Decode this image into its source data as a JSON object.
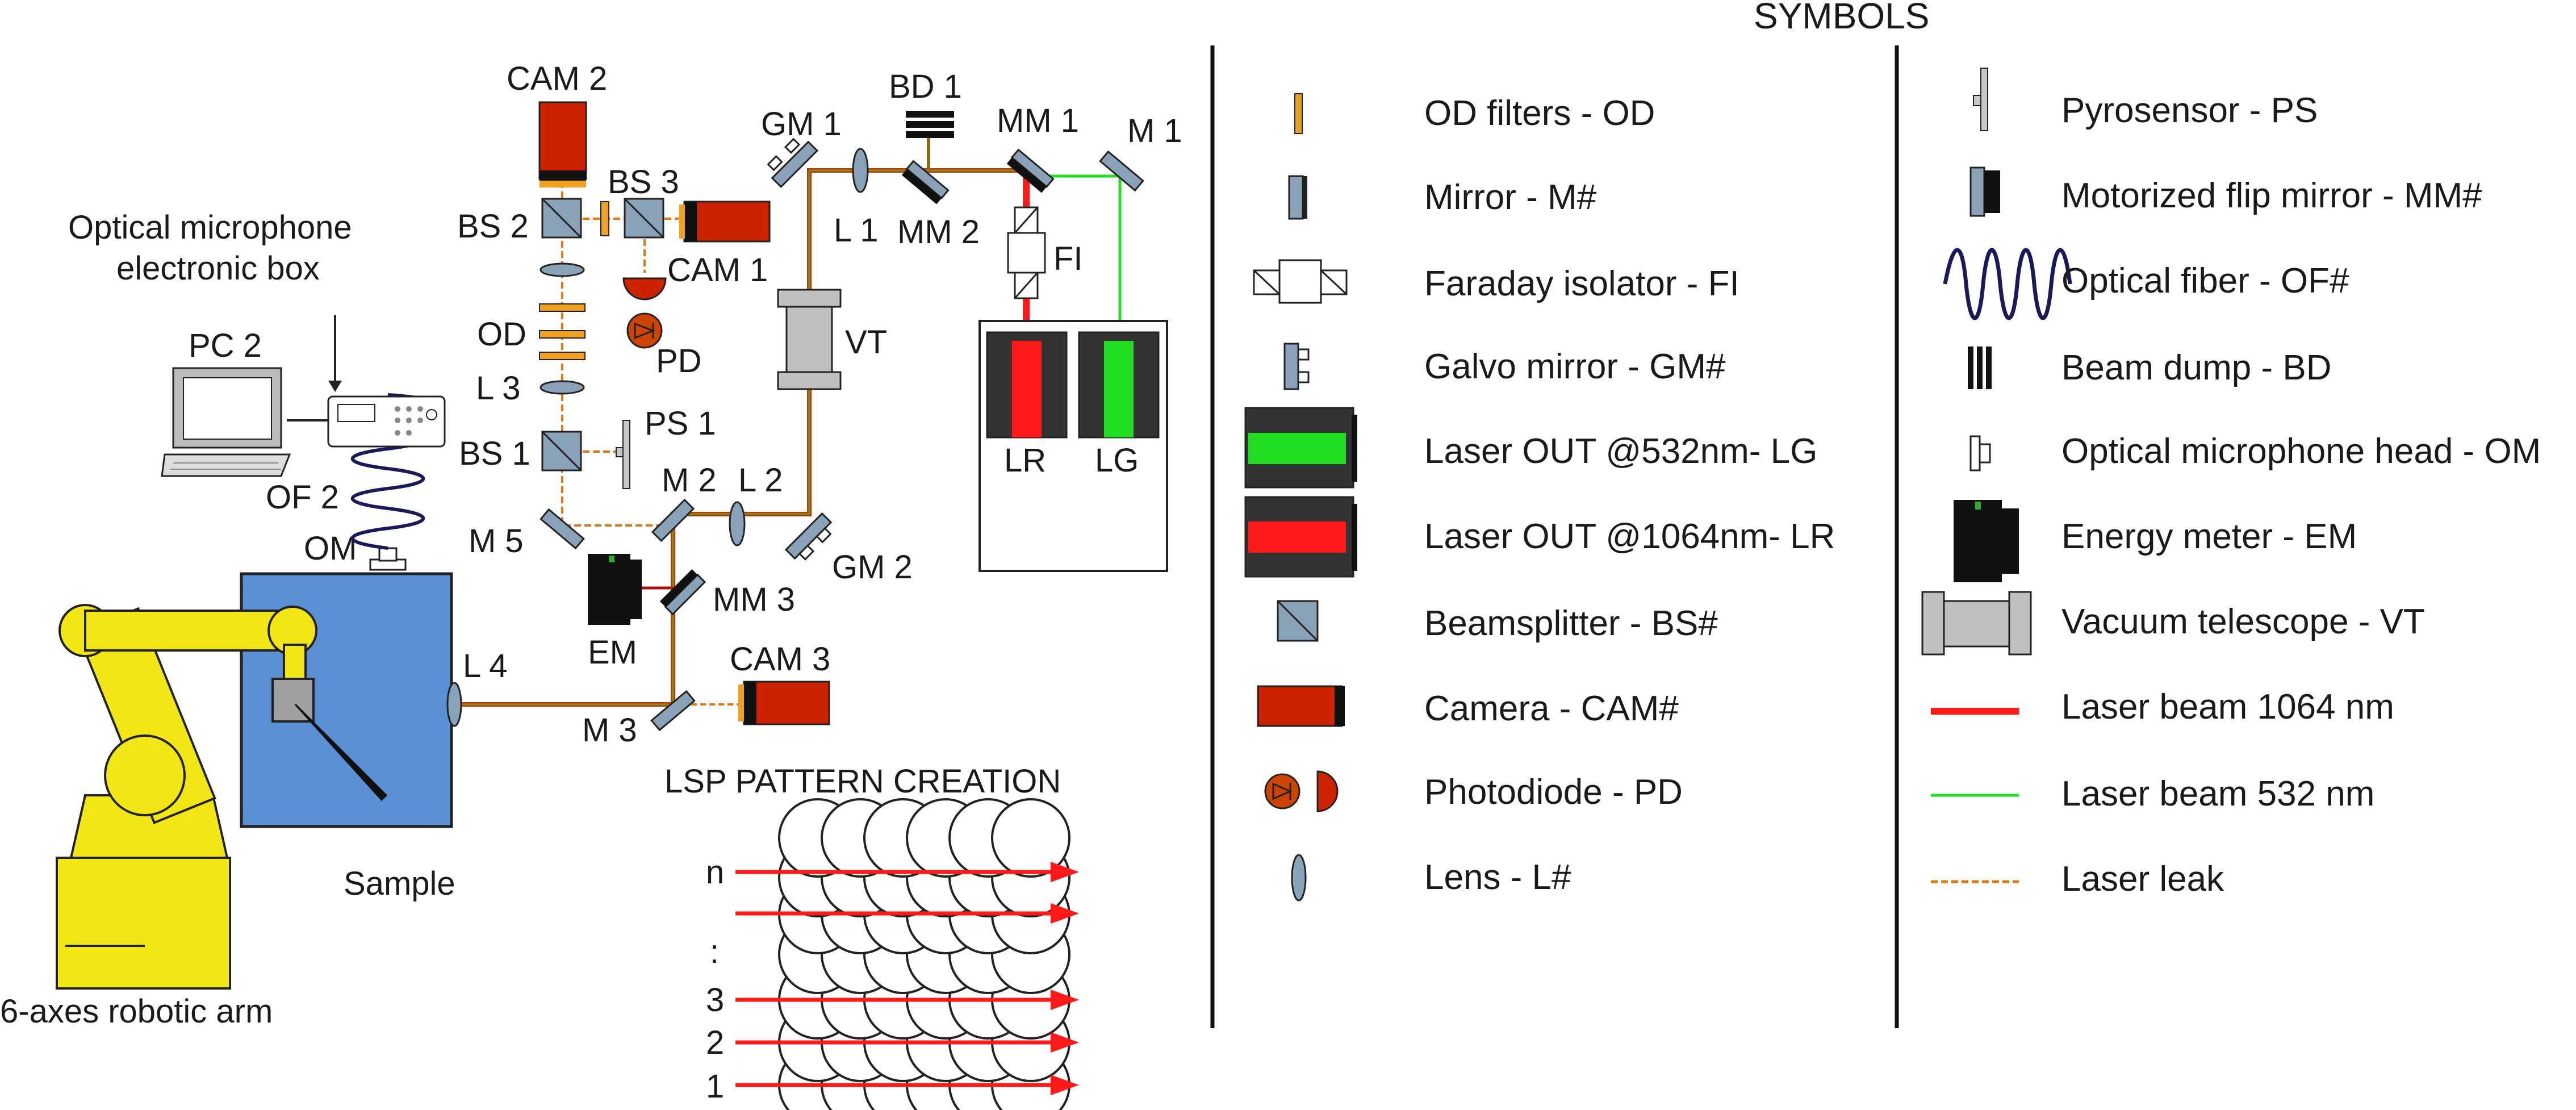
{
  "header": {
    "symbols_title": "SYMBOLS"
  },
  "labels": {
    "cam2": "CAM 2",
    "cam1": "CAM 1",
    "cam3": "CAM 3",
    "bs1": "BS 1",
    "bs2": "BS 2",
    "bs3": "BS 3",
    "od": "OD",
    "l1": "L 1",
    "l2": "L 2",
    "l3": "L 3",
    "l4": "L 4",
    "pd": "PD",
    "ps1": "PS 1",
    "m1": "M 1",
    "m2": "M 2",
    "m3": "M 3",
    "m5": "M 5",
    "mm1": "MM 1",
    "mm2": "MM 2",
    "mm3": "MM 3",
    "gm1": "GM 1",
    "gm2": "GM 2",
    "bd1": "BD 1",
    "fi": "FI",
    "vt": "VT",
    "lr": "LR",
    "lg": "LG",
    "em": "EM",
    "om": "OM",
    "of2": "OF 2",
    "pc2": "PC 2",
    "mic_box_1": "Optical microphone",
    "mic_box_2": "electronic box",
    "sample": "Sample",
    "robot": "6-axes robotic arm",
    "lsp_title": "LSP PATTERN CREATION",
    "row_n": "n",
    "row_dots": ":",
    "row_3": "3",
    "row_2": "2",
    "row_1": "1"
  },
  "legend_left": [
    {
      "icon": "od-filter-icon",
      "label": "OD filters - OD"
    },
    {
      "icon": "mirror-icon",
      "label": "Mirror - M#"
    },
    {
      "icon": "faraday-isolator-icon",
      "label": "Faraday isolator - FI"
    },
    {
      "icon": "galvo-mirror-icon",
      "label": "Galvo mirror - GM#"
    },
    {
      "icon": "laser-green-icon",
      "label": "Laser OUT @532nm- LG"
    },
    {
      "icon": "laser-red-icon",
      "label": "Laser OUT @1064nm- LR"
    },
    {
      "icon": "beamsplitter-icon",
      "label": "Beamsplitter - BS#"
    },
    {
      "icon": "camera-icon",
      "label": "Camera - CAM#"
    },
    {
      "icon": "photodiode-icon",
      "label": "Photodiode - PD"
    },
    {
      "icon": "lens-icon",
      "label": "Lens - L#"
    }
  ],
  "legend_right": [
    {
      "icon": "pyrosensor-icon",
      "label": "Pyrosensor - PS"
    },
    {
      "icon": "flip-mirror-icon",
      "label": "Motorized flip mirror - MM#"
    },
    {
      "icon": "optical-fiber-icon",
      "label": "Optical fiber - OF#"
    },
    {
      "icon": "beam-dump-icon",
      "label": "Beam dump - BD"
    },
    {
      "icon": "microphone-head-icon",
      "label": "Optical microphone head - OM"
    },
    {
      "icon": "energy-meter-icon",
      "label": "Energy meter - EM"
    },
    {
      "icon": "vacuum-telescope-icon",
      "label": "Vacuum telescope - VT"
    },
    {
      "icon": "beam-1064-icon",
      "label": "Laser beam 1064 nm"
    },
    {
      "icon": "beam-532-icon",
      "label": "Laser beam 532 nm"
    },
    {
      "icon": "laser-leak-icon",
      "label": "Laser leak"
    }
  ],
  "colors": {
    "laser_red": "#ff1a1a",
    "laser_green": "#22dd22",
    "leak": "#e07a10",
    "camera_red": "#cc2200",
    "chamber_blue": "#5b8fd4",
    "robot_yellow": "#f2e614",
    "optic_blue": "#8aa2b8",
    "telescope_grey": "#c0c0c0",
    "fiber_navy": "#1a1a5a"
  }
}
